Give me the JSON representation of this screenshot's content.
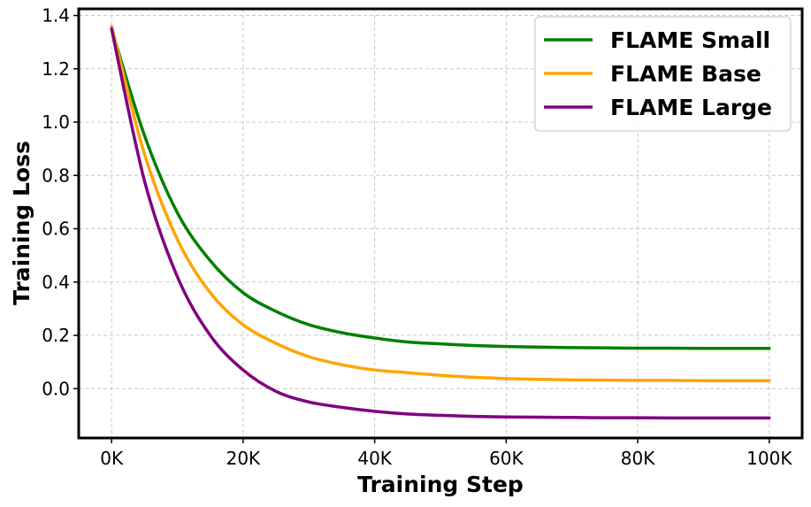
{
  "chart_data": {
    "type": "line",
    "title": "",
    "xlabel": "Training Step",
    "ylabel": "Training Loss",
    "xlim": [
      -5000,
      105000
    ],
    "ylim": [
      -0.185,
      1.425
    ],
    "x_ticks": [
      0,
      20000,
      40000,
      60000,
      80000,
      100000
    ],
    "x_tick_labels": [
      "0K",
      "20K",
      "40K",
      "60K",
      "80K",
      "100K"
    ],
    "y_ticks": [
      0.0,
      0.2,
      0.4,
      0.6,
      0.8,
      1.0,
      1.2,
      1.4
    ],
    "y_tick_labels": [
      "0.0",
      "0.2",
      "0.4",
      "0.6",
      "0.8",
      "1.0",
      "1.2",
      "1.4"
    ],
    "grid": true,
    "legend_position": "top-right",
    "x": [
      0,
      5000,
      10000,
      15000,
      20000,
      25000,
      30000,
      35000,
      40000,
      45000,
      50000,
      55000,
      60000,
      65000,
      70000,
      75000,
      80000,
      85000,
      90000,
      95000,
      100000
    ],
    "series": [
      {
        "name": "FLAME Small",
        "color": "#008000",
        "values": [
          1.35,
          0.95,
          0.66,
          0.48,
          0.36,
          0.29,
          0.24,
          0.21,
          0.19,
          0.175,
          0.168,
          0.162,
          0.158,
          0.156,
          0.154,
          0.153,
          0.152,
          0.152,
          0.151,
          0.151,
          0.151
        ]
      },
      {
        "name": "FLAME Base",
        "color": "#FFA500",
        "values": [
          1.36,
          0.88,
          0.56,
          0.36,
          0.24,
          0.17,
          0.12,
          0.09,
          0.07,
          0.06,
          0.05,
          0.043,
          0.038,
          0.035,
          0.033,
          0.032,
          0.031,
          0.031,
          0.03,
          0.03,
          0.03
        ]
      },
      {
        "name": "FLAME Large",
        "color": "#800080",
        "values": [
          1.35,
          0.78,
          0.42,
          0.2,
          0.07,
          -0.01,
          -0.05,
          -0.07,
          -0.085,
          -0.095,
          -0.1,
          -0.104,
          -0.106,
          -0.107,
          -0.108,
          -0.109,
          -0.109,
          -0.11,
          -0.11,
          -0.11,
          -0.11
        ]
      }
    ]
  }
}
